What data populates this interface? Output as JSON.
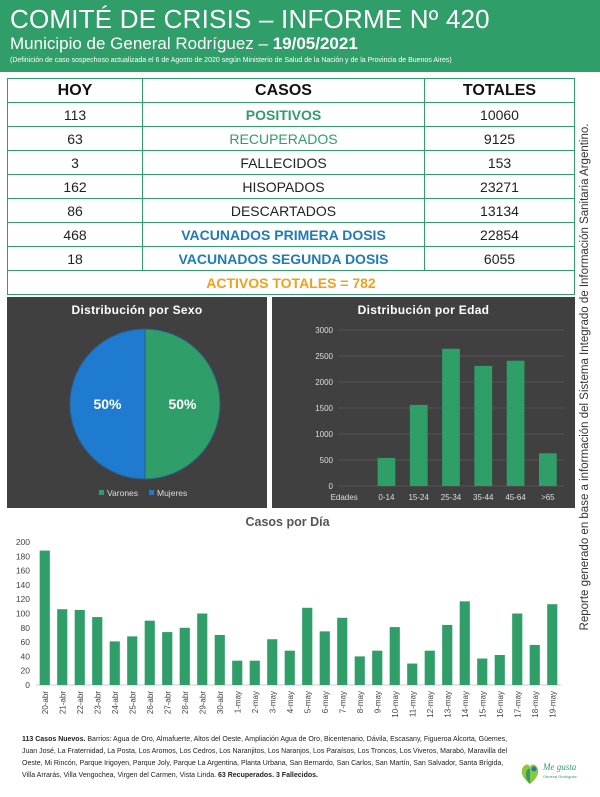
{
  "header": {
    "title": "COMITÉ DE CRISIS – INFORME Nº 420",
    "subtitle_prefix": "Municipio de General Rodríguez – ",
    "date": "19/05/2021",
    "note": "(Definición de caso sospechoso actualizada el 6 de Agosto de 2020 según Ministerio de Salud de la Nación y de la Provincia de Buenos Aires)"
  },
  "table": {
    "headers": [
      "HOY",
      "CASOS",
      "TOTALES"
    ],
    "rows": [
      {
        "hoy": "113",
        "label": "POSITIVOS",
        "total": "10060",
        "style": "green-bold"
      },
      {
        "hoy": "63",
        "label": "RECUPERADOS",
        "total": "9125",
        "style": "green"
      },
      {
        "hoy": "3",
        "label": "FALLECIDOS",
        "total": "153",
        "style": "plain"
      },
      {
        "hoy": "162",
        "label": "HISOPADOS",
        "total": "23271",
        "style": "plain"
      },
      {
        "hoy": "86",
        "label": "DESCARTADOS",
        "total": "13134",
        "style": "plain"
      },
      {
        "hoy": "468",
        "label": "VACUNADOS PRIMERA DOSIS",
        "total": "22854",
        "style": "blue-bold"
      },
      {
        "hoy": "18",
        "label": "VACUNADOS SEGUNDA DOSIS",
        "total": "6055",
        "style": "blue-bold"
      }
    ],
    "activos": "ACTIVOS TOTALES = 782"
  },
  "side_text": "Reporte generado en base a información del Sistema Integrado de Información Sanitaria Argentino.",
  "chart_data": [
    {
      "type": "pie",
      "title": "Distribución por Sexo",
      "categories": [
        "Varones",
        "Mujeres"
      ],
      "values": [
        50,
        50
      ],
      "labels": [
        "50%",
        "50%"
      ],
      "colors": [
        "#2f9e68",
        "#1f7bd0"
      ],
      "legend": "bottom"
    },
    {
      "type": "bar",
      "title": "Distribución por Edad",
      "axis_label": "Edades",
      "categories": [
        "0-14",
        "15-24",
        "25-34",
        "35-44",
        "45-64",
        ">65"
      ],
      "values": [
        540,
        1560,
        2640,
        2310,
        2410,
        630
      ],
      "ylim": [
        0,
        3000
      ],
      "yticks": [
        0,
        500,
        1000,
        1500,
        2000,
        2500,
        3000
      ],
      "color": "#2f9e68",
      "grid": true
    },
    {
      "type": "bar",
      "title": "Casos por Día",
      "categories": [
        "20-abr",
        "21-abr",
        "22-abr",
        "23-abr",
        "24-abr",
        "25-abr",
        "26-abr",
        "27-abr",
        "28-abr",
        "29-abr",
        "30-abr",
        "1-may",
        "2-may",
        "3-may",
        "4-may",
        "5-may",
        "6-may",
        "7-may",
        "8-may",
        "9-may",
        "10-may",
        "11-may",
        "12-may",
        "13-may",
        "14-may",
        "15-may",
        "16-may",
        "17-may",
        "18-may",
        "19-may"
      ],
      "values": [
        188,
        106,
        105,
        95,
        61,
        68,
        90,
        74,
        80,
        100,
        70,
        34,
        34,
        64,
        48,
        108,
        75,
        94,
        40,
        48,
        81,
        30,
        48,
        84,
        117,
        37,
        42,
        100,
        56,
        113
      ],
      "ylim": [
        0,
        200
      ],
      "yticks": [
        0,
        20,
        40,
        60,
        80,
        100,
        120,
        140,
        160,
        180,
        200
      ],
      "color": "#2f9e68",
      "grid": false
    }
  ],
  "footer": {
    "count_label": "113 Casos Nuevos.",
    "barrios": " Barrios: Agua de Oro, Almafuerte, Altos del Oeste, Ampliación Agua de Oro, Bicentenario, Dávila, Escasany, Figueroa Alcorta, Güemes, Juan José, La Fraternidad, La Posta, Los Aromos, Los Cedros, Los Naranjitos, Los Naranjos, Los Paraísos, Los Troncos, Los Viveros, Marabó, Maravilla del Oeste, Mi Rincón, Parque Irigoyen, Parque Joly, Parque La Argentina, Planta Urbana, San Bernardo, San Carlos, San Martín, San Salvador, Santa Brígida, Villa Arrarás, Villa Vengochea, Virgen del Carmen, Vista Linda.",
    "summary": " 63 Recuperados. 3 Fallecidos."
  },
  "logo": {
    "text": "Me gusta",
    "sub": "General Rodríguez"
  }
}
